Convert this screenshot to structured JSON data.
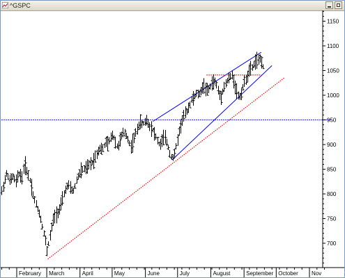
{
  "window": {
    "title": "^GSPC"
  },
  "chart_data": {
    "type": "bar",
    "subtype": "ohlc",
    "title": "^GSPC",
    "ylim": [
      650,
      1180
    ],
    "y_ticks": [
      700,
      750,
      800,
      850,
      900,
      950,
      1000,
      1050,
      1100,
      1150
    ],
    "y_tick_labels": [
      "700",
      "750",
      "800",
      "850",
      "900",
      "950",
      "1000",
      "1050",
      "1100",
      "1150"
    ],
    "x_range_days": [
      0,
      294
    ],
    "x_ticks": [
      {
        "label": "February",
        "day": 0
      },
      {
        "label": "March",
        "day": 28
      },
      {
        "label": "April",
        "day": 59
      },
      {
        "label": "May",
        "day": 89
      },
      {
        "label": "June",
        "day": 120
      },
      {
        "label": "July",
        "day": 150
      },
      {
        "label": "August",
        "day": 181
      },
      {
        "label": "September",
        "day": 212
      },
      {
        "label": "October",
        "day": 242
      },
      {
        "label": "Nov",
        "day": 273
      }
    ],
    "price_points": [
      [
        -14,
        805
      ],
      [
        -11,
        830
      ],
      [
        -9,
        845
      ],
      [
        -7,
        825
      ],
      [
        -4,
        835
      ],
      [
        -1,
        825
      ],
      [
        2,
        842
      ],
      [
        5,
        832
      ],
      [
        7,
        862
      ],
      [
        10,
        842
      ],
      [
        13,
        822
      ],
      [
        15,
        798
      ],
      [
        18,
        778
      ],
      [
        21,
        760
      ],
      [
        23,
        742
      ],
      [
        25,
        722
      ],
      [
        27,
        700
      ],
      [
        28,
        684
      ],
      [
        30,
        705
      ],
      [
        32,
        728
      ],
      [
        34,
        748
      ],
      [
        36,
        758
      ],
      [
        39,
        765
      ],
      [
        41,
        776
      ],
      [
        43,
        792
      ],
      [
        45,
        808
      ],
      [
        48,
        818
      ],
      [
        50,
        810
      ],
      [
        53,
        806
      ],
      [
        56,
        832
      ],
      [
        59,
        844
      ],
      [
        62,
        850
      ],
      [
        65,
        852
      ],
      [
        68,
        860
      ],
      [
        71,
        866
      ],
      [
        74,
        880
      ],
      [
        77,
        893
      ],
      [
        80,
        890
      ],
      [
        83,
        905
      ],
      [
        85,
        900
      ],
      [
        87,
        912
      ],
      [
        89,
        920
      ],
      [
        91,
        912
      ],
      [
        93,
        896
      ],
      [
        95,
        900
      ],
      [
        97,
        915
      ],
      [
        100,
        925
      ],
      [
        103,
        915
      ],
      [
        106,
        895
      ],
      [
        108,
        905
      ],
      [
        110,
        918
      ],
      [
        113,
        938
      ],
      [
        115,
        945
      ],
      [
        117,
        940
      ],
      [
        119,
        945
      ],
      [
        121,
        950
      ],
      [
        123,
        940
      ],
      [
        125,
        935
      ],
      [
        127,
        928
      ],
      [
        129,
        918
      ],
      [
        131,
        908
      ],
      [
        133,
        898
      ],
      [
        135,
        905
      ],
      [
        137,
        915
      ],
      [
        139,
        910
      ],
      [
        141,
        895
      ],
      [
        143,
        880
      ],
      [
        145,
        872
      ],
      [
        147,
        880
      ],
      [
        149,
        902
      ],
      [
        151,
        925
      ],
      [
        153,
        940
      ],
      [
        155,
        955
      ],
      [
        157,
        962
      ],
      [
        159,
        970
      ],
      [
        161,
        980
      ],
      [
        163,
        990
      ],
      [
        165,
        995
      ],
      [
        168,
        1005
      ],
      [
        170,
        1000
      ],
      [
        172,
        1012
      ],
      [
        175,
        1020
      ],
      [
        177,
        1008
      ],
      [
        179,
        1012
      ],
      [
        182,
        1025
      ],
      [
        184,
        1030
      ],
      [
        186,
        1022
      ],
      [
        188,
        1005
      ],
      [
        190,
        995
      ],
      [
        192,
        1010
      ],
      [
        195,
        1025
      ],
      [
        198,
        1035
      ],
      [
        201,
        1040
      ],
      [
        203,
        1022
      ],
      [
        205,
        1008
      ],
      [
        207,
        995
      ],
      [
        209,
        1002
      ],
      [
        211,
        1018
      ],
      [
        213,
        1030
      ],
      [
        215,
        1040
      ],
      [
        217,
        1050
      ],
      [
        219,
        1055
      ],
      [
        221,
        1062
      ],
      [
        223,
        1072
      ],
      [
        225,
        1068
      ],
      [
        227,
        1075
      ],
      [
        229,
        1065
      ],
      [
        231,
        1042
      ]
    ],
    "trendlines": [
      {
        "name": "rising channel upper",
        "color": "#0000ff",
        "style": "solid",
        "from": [
          127,
          947
        ],
        "to": [
          228,
          1087
        ]
      },
      {
        "name": "rising channel lower",
        "color": "#0000ff",
        "style": "solid",
        "from": [
          145,
          869
        ],
        "to": [
          238,
          1060
        ]
      },
      {
        "name": "long term support",
        "color": "#ff0000",
        "style": "dotted",
        "from": [
          29,
          668
        ],
        "to": [
          250,
          1036
        ]
      },
      {
        "name": "horizontal resistance",
        "color": "#ff0000",
        "style": "dotted",
        "from": [
          177,
          1041
        ],
        "to": [
          228,
          1041
        ]
      },
      {
        "name": "horizontal level 950",
        "color": "#0000ff",
        "style": "dotted",
        "from": [
          -20,
          950
        ],
        "to": [
          294,
          950
        ]
      }
    ],
    "grid": false,
    "legend": "none",
    "colors": {
      "bars": "#000000",
      "channel": "#0000ff",
      "support": "#ff0000"
    }
  }
}
